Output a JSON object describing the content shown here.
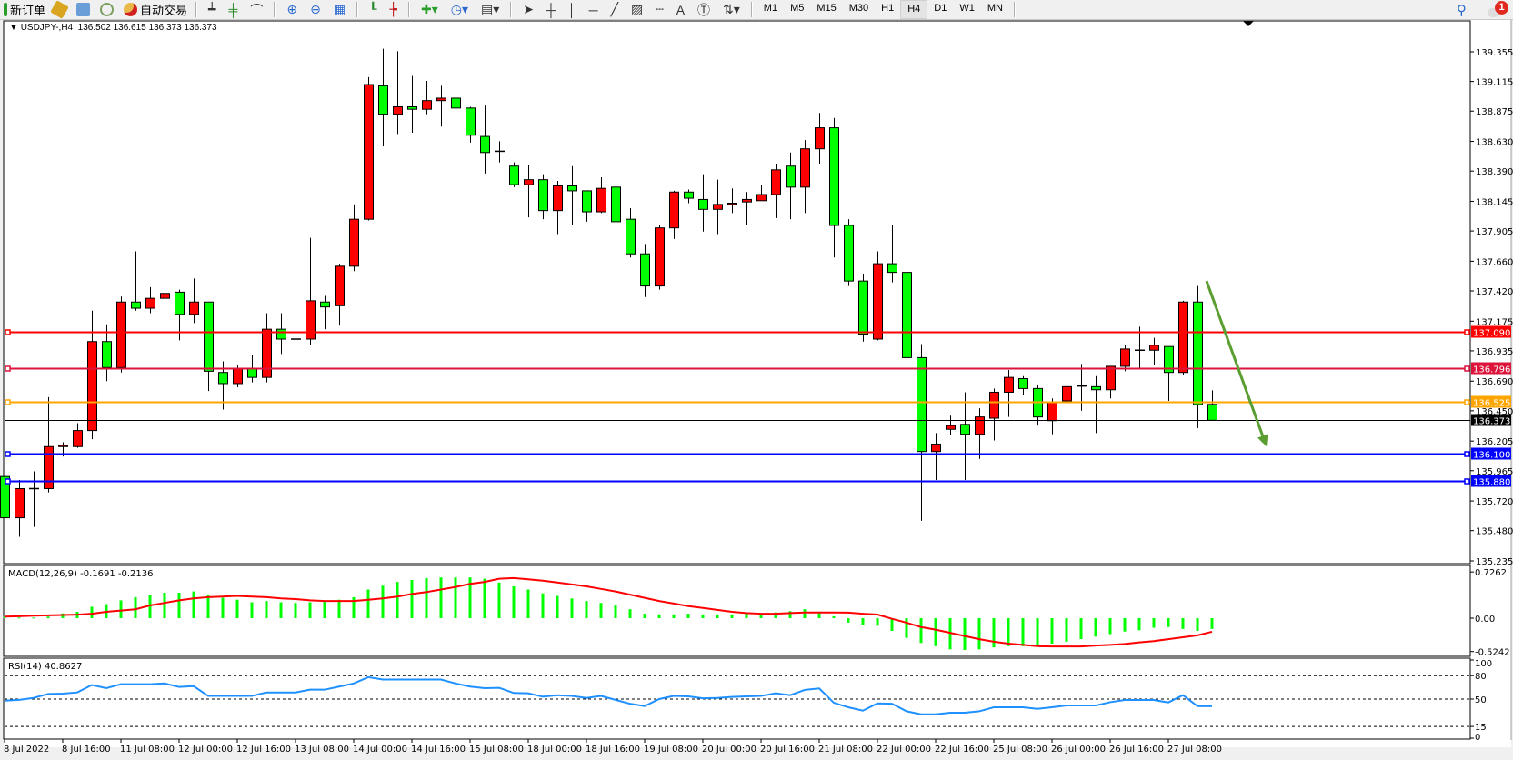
{
  "toolbar": {
    "new_order": "新订单",
    "auto_trading": "自动交易",
    "timeframes": [
      "M1",
      "M5",
      "M15",
      "M30",
      "H1",
      "H4",
      "D1",
      "W1",
      "MN"
    ],
    "active_timeframe": "H4",
    "notification_count": "1",
    "icons": [
      "new-order-icon",
      "market-watch-icon",
      "navigator-icon",
      "signals-icon",
      "auto-trading-icon",
      "bar-chart-icon",
      "candlestick-icon",
      "line-chart-icon",
      "zoom-in-icon",
      "zoom-out-icon",
      "tile-windows-icon",
      "auto-scroll-icon",
      "chart-shift-icon",
      "indicators-icon",
      "periods-icon",
      "templates-icon",
      "cursor-icon",
      "crosshair-icon",
      "vertical-line-icon",
      "horizontal-line-icon",
      "trendline-icon",
      "equidistant-channel-icon",
      "fibonacci-icon",
      "text-icon",
      "text-label-icon",
      "arrows-icon",
      "search-icon",
      "notification-icon"
    ]
  },
  "chart_data": {
    "type": "candlestick",
    "symbol_header": "USDJPY-,H4  136.502 136.615 136.373 136.373",
    "colors": {
      "bull": "#ff0000",
      "bear": "#00ff00",
      "wick": "#000000"
    },
    "ylim": [
      135.235,
      139.355
    ],
    "y_ticks": [
      "139.355",
      "139.115",
      "138.875",
      "138.630",
      "138.390",
      "138.145",
      "137.905",
      "137.660",
      "137.420",
      "137.175",
      "136.935",
      "136.690",
      "136.450",
      "136.205",
      "135.965",
      "135.720",
      "135.480",
      "135.235"
    ],
    "x_ticks": [
      "8 Jul 2022",
      "8 Jul 16:00",
      "11 Jul 08:00",
      "12 Jul 00:00",
      "12 Jul 16:00",
      "13 Jul 08:00",
      "14 Jul 00:00",
      "14 Jul 16:00",
      "15 Jul 08:00",
      "18 Jul 00:00",
      "18 Jul 16:00",
      "19 Jul 08:00",
      "20 Jul 00:00",
      "20 Jul 16:00",
      "21 Jul 08:00",
      "22 Jul 00:00",
      "22 Jul 16:00",
      "25 Jul 08:00",
      "26 Jul 00:00",
      "26 Jul 16:00",
      "27 Jul 08:00"
    ],
    "ohlc": [
      [
        135.918,
        136.14,
        135.33,
        135.584
      ],
      [
        135.584,
        135.89,
        135.43,
        135.82
      ],
      [
        135.82,
        135.96,
        135.51,
        135.82
      ],
      [
        135.82,
        136.56,
        135.79,
        136.16
      ],
      [
        136.16,
        136.195,
        136.08,
        136.17
      ],
      [
        136.16,
        136.35,
        136.15,
        136.29
      ],
      [
        136.29,
        137.26,
        136.22,
        137.01
      ],
      [
        137.01,
        137.15,
        136.69,
        136.8
      ],
      [
        136.8,
        137.375,
        136.76,
        137.33
      ],
      [
        137.33,
        137.74,
        137.26,
        137.28
      ],
      [
        137.28,
        137.45,
        137.24,
        137.36
      ],
      [
        137.36,
        137.44,
        137.26,
        137.4
      ],
      [
        137.41,
        137.43,
        137.02,
        137.23
      ],
      [
        137.23,
        137.52,
        137.16,
        137.33
      ],
      [
        137.33,
        137.33,
        136.61,
        136.77
      ],
      [
        136.76,
        136.85,
        136.46,
        136.67
      ],
      [
        136.67,
        136.82,
        136.64,
        136.79
      ],
      [
        136.79,
        136.9,
        136.68,
        136.72
      ],
      [
        136.72,
        137.24,
        136.68,
        137.11
      ],
      [
        137.11,
        137.24,
        136.91,
        137.03
      ],
      [
        137.03,
        137.19,
        136.97,
        137.03
      ],
      [
        137.03,
        137.85,
        136.98,
        137.34
      ],
      [
        137.33,
        137.38,
        137.11,
        137.29
      ],
      [
        137.3,
        137.64,
        137.14,
        137.62
      ],
      [
        137.62,
        138.12,
        137.58,
        138.0
      ],
      [
        138.0,
        139.15,
        137.99,
        139.09
      ],
      [
        139.08,
        139.38,
        138.59,
        138.85
      ],
      [
        138.85,
        139.36,
        138.69,
        138.91
      ],
      [
        138.91,
        139.16,
        138.7,
        138.89
      ],
      [
        138.89,
        139.12,
        138.85,
        138.96
      ],
      [
        138.96,
        139.08,
        138.75,
        138.98
      ],
      [
        138.98,
        139.05,
        138.54,
        138.9
      ],
      [
        138.9,
        138.91,
        138.62,
        138.68
      ],
      [
        138.67,
        138.92,
        138.37,
        138.54
      ],
      [
        138.55,
        138.63,
        138.46,
        138.55
      ],
      [
        138.43,
        138.46,
        138.26,
        138.28
      ],
      [
        138.28,
        138.44,
        138.015,
        138.32
      ],
      [
        138.32,
        138.365,
        138.0,
        138.07
      ],
      [
        138.07,
        138.31,
        137.88,
        138.27
      ],
      [
        138.27,
        138.43,
        137.95,
        138.23
      ],
      [
        138.23,
        138.23,
        137.98,
        138.06
      ],
      [
        138.06,
        138.34,
        138.05,
        138.25
      ],
      [
        138.26,
        138.38,
        137.96,
        137.98
      ],
      [
        138.0,
        138.09,
        137.69,
        137.72
      ],
      [
        137.72,
        137.8,
        137.37,
        137.46
      ],
      [
        137.46,
        137.95,
        137.43,
        137.93
      ],
      [
        137.93,
        138.23,
        137.84,
        138.22
      ],
      [
        138.22,
        138.24,
        138.13,
        138.17
      ],
      [
        138.16,
        138.365,
        137.9,
        138.08
      ],
      [
        138.08,
        138.32,
        137.88,
        138.12
      ],
      [
        138.12,
        138.25,
        138.05,
        138.13
      ],
      [
        138.14,
        138.22,
        137.95,
        138.16
      ],
      [
        138.15,
        138.28,
        138.15,
        138.2
      ],
      [
        138.2,
        138.45,
        138.01,
        138.4
      ],
      [
        138.43,
        138.54,
        138.0,
        138.26
      ],
      [
        138.26,
        138.64,
        138.05,
        138.57
      ],
      [
        138.57,
        138.86,
        138.45,
        138.74
      ],
      [
        138.74,
        138.82,
        137.69,
        137.95
      ],
      [
        137.95,
        138.0,
        137.46,
        137.5
      ],
      [
        137.5,
        137.56,
        137.01,
        137.07
      ],
      [
        137.03,
        137.74,
        137.02,
        137.64
      ],
      [
        137.64,
        137.95,
        137.49,
        137.57
      ],
      [
        137.57,
        137.75,
        136.78,
        136.88
      ],
      [
        136.88,
        136.99,
        135.56,
        136.12
      ],
      [
        136.12,
        136.27,
        135.89,
        136.18
      ],
      [
        136.3,
        136.41,
        136.25,
        136.33
      ],
      [
        136.34,
        136.6,
        135.89,
        136.26
      ],
      [
        136.26,
        136.47,
        136.06,
        136.4
      ],
      [
        136.39,
        136.63,
        136.21,
        136.6
      ],
      [
        136.6,
        136.78,
        136.4,
        136.72
      ],
      [
        136.71,
        136.73,
        136.58,
        136.63
      ],
      [
        136.63,
        136.66,
        136.33,
        136.4
      ],
      [
        136.37,
        136.55,
        136.26,
        136.52
      ],
      [
        136.53,
        136.72,
        136.44,
        136.645
      ],
      [
        136.65,
        136.83,
        136.45,
        136.65
      ],
      [
        136.645,
        136.73,
        136.27,
        136.62
      ],
      [
        136.62,
        136.81,
        136.55,
        136.81
      ],
      [
        136.81,
        136.98,
        136.77,
        136.95
      ],
      [
        136.94,
        137.13,
        136.79,
        136.94
      ],
      [
        136.94,
        137.04,
        136.82,
        136.98
      ],
      [
        136.97,
        136.97,
        136.53,
        136.76
      ],
      [
        136.76,
        137.34,
        136.74,
        137.33
      ],
      [
        137.33,
        137.46,
        136.31,
        136.5
      ],
      [
        136.502,
        136.615,
        136.373,
        136.373
      ]
    ],
    "hlines": [
      {
        "price": "137.090",
        "color": "#ff0000"
      },
      {
        "price": "136.796",
        "color": "#dc143c"
      },
      {
        "price": "136.525",
        "color": "#ffa500"
      },
      {
        "price": "136.100",
        "color": "#0000ff"
      },
      {
        "price": "135.880",
        "color": "#0000ff"
      }
    ],
    "bid_line": {
      "price": "136.373",
      "color": "#000000"
    },
    "arrow": {
      "from_price": 137.5,
      "to_price": 136.16,
      "color": "#5a9e32"
    },
    "macd": {
      "label": "MACD(12,26,9) -0.1691 -0.2136",
      "y_ticks": [
        "0.7262",
        "0.00",
        "-0.5242"
      ],
      "ylim": [
        -0.5242,
        0.7262
      ],
      "hist_color": "#00ff00",
      "signal_color": "#ff0000",
      "histogram": [
        0.02,
        0.01,
        0.01,
        0.025,
        0.075,
        0.1,
        0.18,
        0.22,
        0.28,
        0.33,
        0.37,
        0.4,
        0.4,
        0.42,
        0.37,
        0.32,
        0.29,
        0.25,
        0.27,
        0.25,
        0.24,
        0.25,
        0.27,
        0.29,
        0.33,
        0.45,
        0.51,
        0.57,
        0.6,
        0.63,
        0.64,
        0.64,
        0.64,
        0.62,
        0.56,
        0.5,
        0.45,
        0.39,
        0.35,
        0.31,
        0.27,
        0.24,
        0.2,
        0.14,
        0.07,
        0.06,
        0.06,
        0.07,
        0.06,
        0.06,
        0.06,
        0.09,
        0.06,
        0.09,
        0.11,
        0.14,
        0.09,
        0.03,
        -0.07,
        -0.1,
        -0.12,
        -0.2,
        -0.31,
        -0.39,
        -0.44,
        -0.49,
        -0.5,
        -0.49,
        -0.46,
        -0.44,
        -0.44,
        -0.44,
        -0.4,
        -0.37,
        -0.33,
        -0.29,
        -0.25,
        -0.21,
        -0.19,
        -0.15,
        -0.14,
        -0.17,
        -0.2,
        -0.1691
      ],
      "signal": [
        0.025,
        0.03,
        0.04,
        0.045,
        0.05,
        0.055,
        0.07,
        0.1,
        0.12,
        0.14,
        0.2,
        0.24,
        0.28,
        0.31,
        0.33,
        0.34,
        0.35,
        0.34,
        0.33,
        0.31,
        0.3,
        0.28,
        0.27,
        0.27,
        0.27,
        0.29,
        0.31,
        0.34,
        0.38,
        0.41,
        0.45,
        0.49,
        0.54,
        0.57,
        0.62,
        0.63,
        0.61,
        0.59,
        0.56,
        0.53,
        0.5,
        0.46,
        0.42,
        0.37,
        0.32,
        0.27,
        0.23,
        0.19,
        0.16,
        0.13,
        0.1,
        0.08,
        0.07,
        0.07,
        0.08,
        0.09,
        0.09,
        0.09,
        0.087,
        0.07,
        0.057,
        -0.01,
        -0.07,
        -0.14,
        -0.18,
        -0.23,
        -0.28,
        -0.33,
        -0.37,
        -0.4,
        -0.42,
        -0.44,
        -0.445,
        -0.445,
        -0.445,
        -0.43,
        -0.42,
        -0.405,
        -0.38,
        -0.36,
        -0.33,
        -0.3,
        -0.27,
        -0.2136
      ]
    },
    "rsi": {
      "label": "RSI(14) 40.8627",
      "y_ticks": [
        "100",
        "80",
        "50",
        "15",
        "0"
      ],
      "levels": [
        80,
        50,
        15
      ],
      "ylim": [
        0,
        100
      ],
      "color": "#1e90ff",
      "values": [
        48,
        49,
        51.5,
        56.6,
        57,
        58.5,
        68,
        64,
        69,
        69,
        69,
        70,
        65.5,
        66.5,
        54,
        54,
        54,
        54,
        58.5,
        58.5,
        58.5,
        62,
        62,
        66,
        70,
        78,
        75,
        75,
        75,
        75,
        75,
        70,
        66,
        64,
        64.4,
        57.8,
        57.4,
        53,
        55,
        54,
        51.5,
        54,
        49,
        44,
        41,
        50,
        54,
        53.5,
        51,
        51.5,
        52.7,
        53.5,
        54,
        57.4,
        55,
        61.7,
        63.6,
        45.3,
        39.5,
        35.2,
        44.5,
        44,
        34.4,
        30.5,
        30.5,
        32.5,
        32.5,
        34.4,
        39.5,
        39.5,
        39.5,
        37.5,
        39.5,
        41.8,
        41.8,
        41.8,
        46,
        48.8,
        48.8,
        48.8,
        45.7,
        55,
        41,
        40.86
      ]
    }
  }
}
